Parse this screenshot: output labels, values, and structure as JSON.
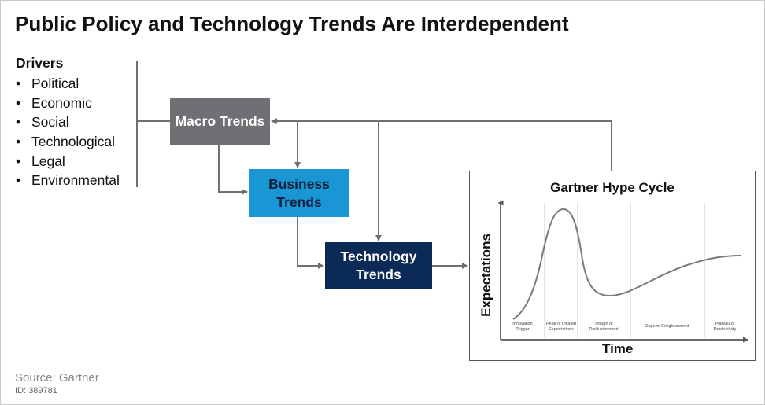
{
  "title": "Public Policy and Technology Trends Are Interdependent",
  "drivers": {
    "heading": "Drivers",
    "items": [
      "Political",
      "Economic",
      "Social",
      "Technological",
      "Legal",
      "Environmental"
    ]
  },
  "boxes": {
    "macro": "Macro Trends",
    "business": "Business Trends",
    "technology": "Technology Trends"
  },
  "hype_cycle": {
    "title": "Gartner Hype Cycle",
    "y_axis": "Expectations",
    "x_axis": "Time",
    "phases": [
      "Innovation Trigger",
      "Peak of Inflated Expectations",
      "Trough of Disillusionment",
      "Slope of Enlightenment",
      "Plateau of Productivity"
    ]
  },
  "footer": {
    "source": "Source: Gartner",
    "id": "ID: 389781"
  },
  "colors": {
    "macro": "#6e7074",
    "business": "#1a96d4",
    "technology": "#0b2a55",
    "arrow": "#6e7074"
  }
}
